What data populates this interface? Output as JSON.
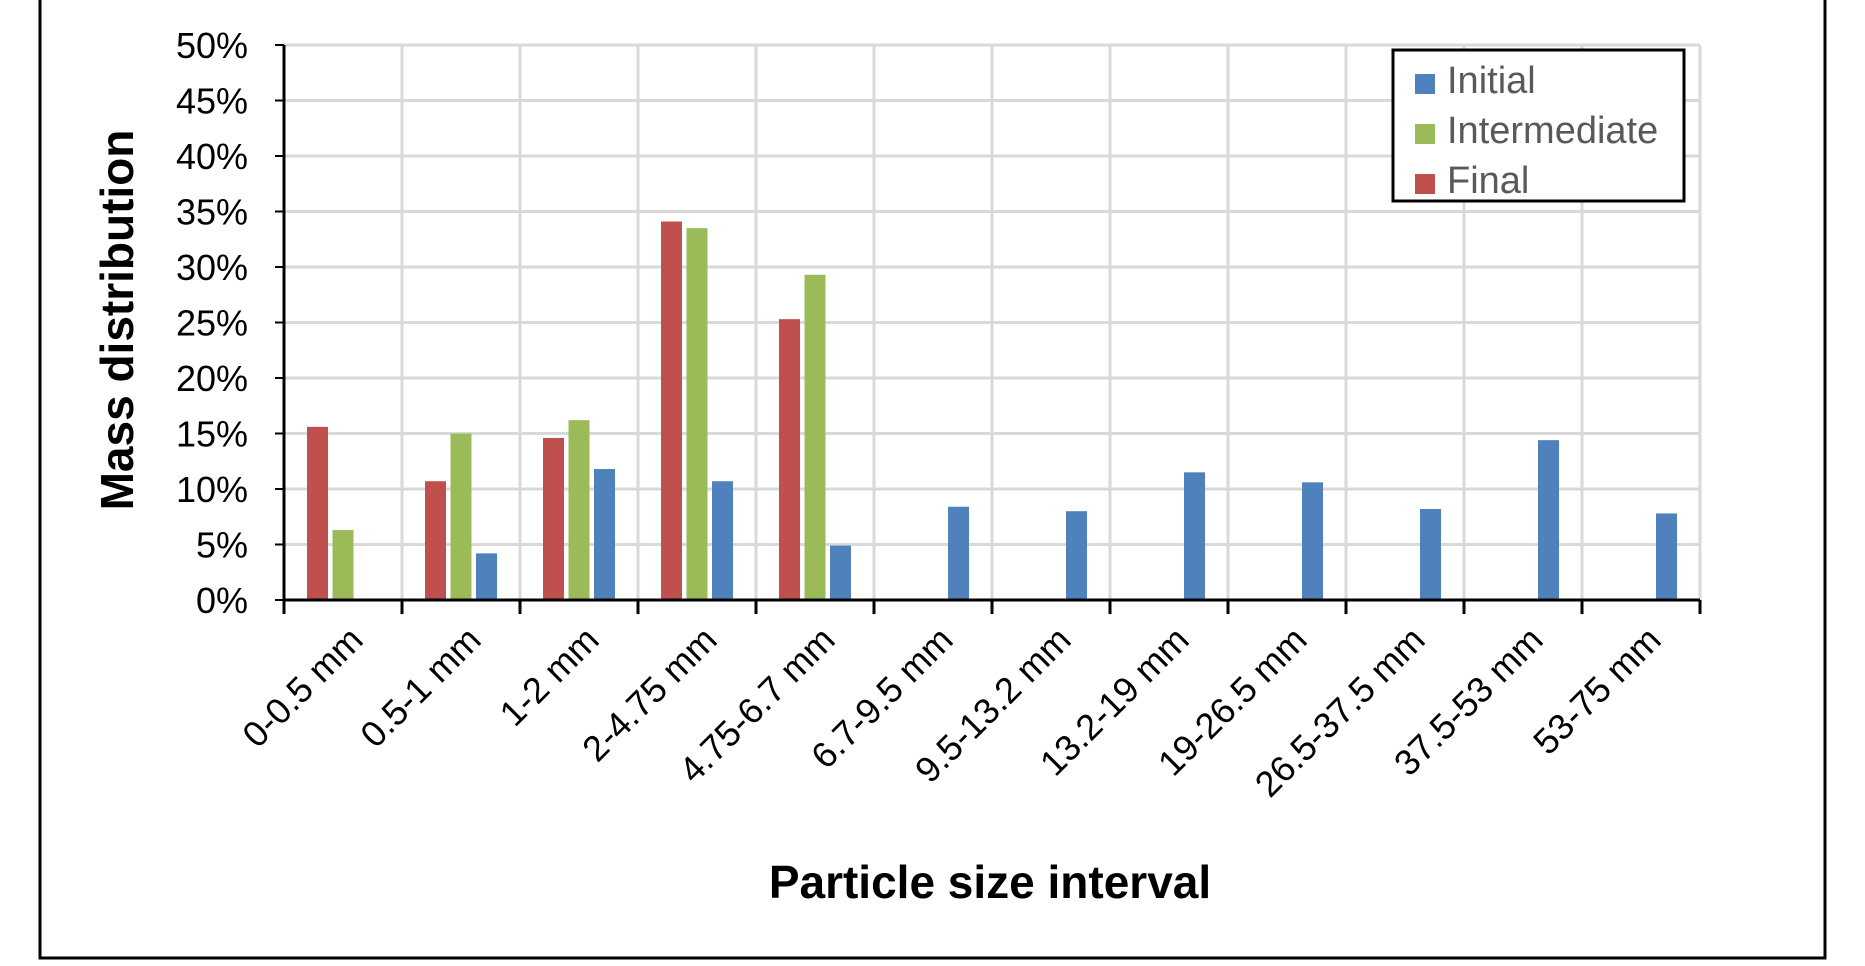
{
  "chart_data": {
    "type": "bar",
    "title": "",
    "xlabel": "Particle size interval",
    "ylabel": "Mass distribution",
    "ylim": [
      0,
      50
    ],
    "yticks": [
      "0%",
      "5%",
      "10%",
      "15%",
      "20%",
      "25%",
      "30%",
      "35%",
      "40%",
      "45%",
      "50%"
    ],
    "grid": true,
    "legend_position": "top-right",
    "categories": [
      "0-0.5 mm",
      "0.5-1 mm",
      "1-2 mm",
      "2-4.75 mm",
      "4.75-6.7 mm",
      "6.7-9.5 mm",
      "9.5-13.2 mm",
      "13.2-19 mm",
      "19-26.5 mm",
      "26.5-37.5 mm",
      "37.5-53 mm",
      "53-75 mm"
    ],
    "series": [
      {
        "name": "Final",
        "color": "#C0504D",
        "values": [
          15.6,
          10.7,
          14.6,
          34.1,
          25.3,
          0,
          0,
          0,
          0,
          0,
          0,
          0
        ]
      },
      {
        "name": "Intermediate",
        "color": "#9BBB59",
        "values": [
          6.3,
          15.0,
          16.2,
          33.5,
          29.3,
          0,
          0,
          0,
          0,
          0,
          0,
          0
        ]
      },
      {
        "name": "Initial",
        "color": "#4F81BD",
        "values": [
          0.1,
          4.2,
          11.8,
          10.7,
          4.9,
          8.4,
          8.0,
          11.5,
          10.6,
          8.2,
          14.4,
          7.8
        ]
      }
    ],
    "legend_order": [
      "Initial",
      "Intermediate",
      "Final"
    ]
  }
}
